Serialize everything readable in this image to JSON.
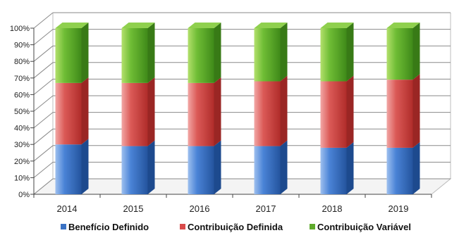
{
  "chart_data": {
    "type": "bar",
    "stacked": true,
    "three_d": true,
    "categories": [
      "2014",
      "2015",
      "2016",
      "2017",
      "2018",
      "2019"
    ],
    "series": [
      {
        "name": "Benefício Definido",
        "values": [
          30,
          29,
          29,
          29,
          28,
          28
        ]
      },
      {
        "name": "Contribuição Definida",
        "values": [
          37,
          38,
          38,
          39,
          40,
          41
        ]
      },
      {
        "name": "Contribuição Variável",
        "values": [
          33,
          33,
          33,
          32,
          32,
          31
        ]
      }
    ],
    "colors": {
      "Benefício Definido": "#3a72c4",
      "Contribuição Definida": "#d94a4a",
      "Contribuição Variável": "#5faa2c"
    },
    "ylim": [
      0,
      100
    ],
    "y_ticks": [
      "0%",
      "10%",
      "20%",
      "30%",
      "40%",
      "50%",
      "60%",
      "70%",
      "80%",
      "90%",
      "100%"
    ],
    "grid": true,
    "legend_position": "bottom",
    "title": "",
    "xlabel": "",
    "ylabel": ""
  }
}
